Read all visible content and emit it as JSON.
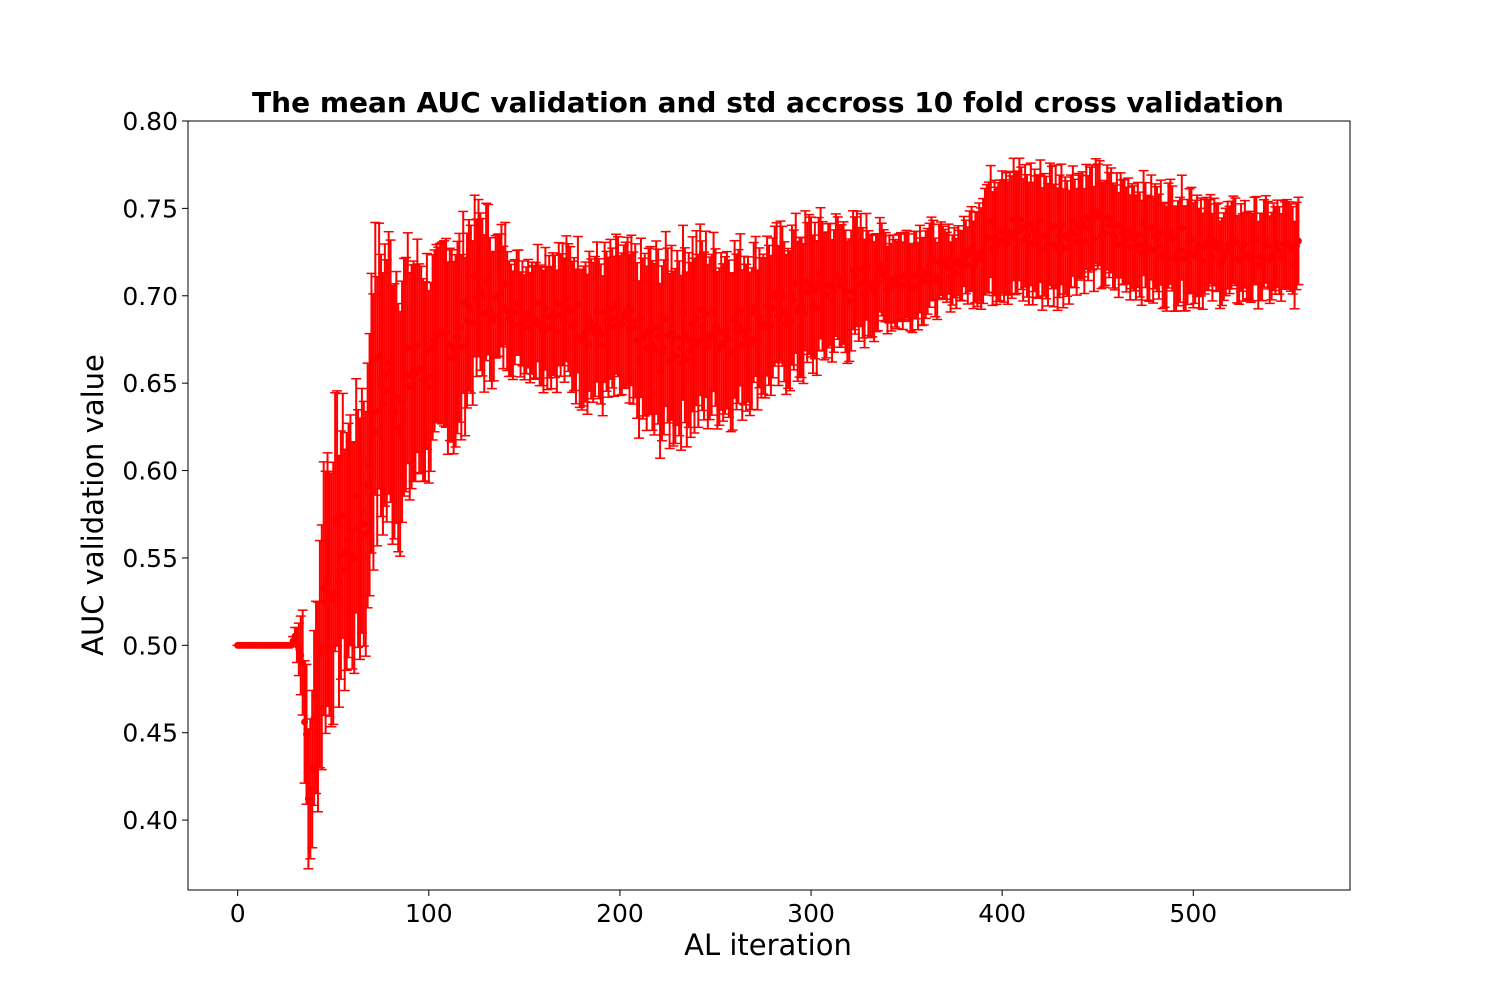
{
  "chart_data": {
    "type": "errorbar",
    "title": "The mean AUC validation and std accross 10 fold cross validation",
    "xlabel": "AL iteration",
    "ylabel": "AUC validation value",
    "xlim": [
      -26,
      582
    ],
    "ylim": [
      0.36,
      0.8
    ],
    "xticks": [
      0,
      100,
      200,
      300,
      400,
      500
    ],
    "yticks": [
      0.4,
      0.45,
      0.5,
      0.55,
      0.6,
      0.65,
      0.7,
      0.75,
      0.8
    ],
    "xtick_labels": [
      "0",
      "100",
      "200",
      "300",
      "400",
      "500"
    ],
    "ytick_labels": [
      "0.40",
      "0.45",
      "0.50",
      "0.55",
      "0.60",
      "0.65",
      "0.70",
      "0.75",
      "0.80"
    ],
    "grid": false,
    "color": "#ff0000",
    "series": [
      {
        "x": [
          0,
          28,
          30,
          32,
          34,
          36,
          37,
          38,
          40,
          42,
          44,
          46,
          48,
          50,
          55,
          60,
          65,
          68,
          70,
          75,
          80,
          85,
          90,
          95,
          100,
          105,
          110,
          115,
          120,
          125,
          130,
          135,
          140,
          145,
          150,
          160,
          170,
          180,
          190,
          200,
          210,
          220,
          230,
          240,
          250,
          260,
          270,
          280,
          290,
          300,
          310,
          320,
          330,
          340,
          350,
          360,
          370,
          380,
          390,
          400,
          410,
          420,
          430,
          440,
          450,
          460,
          470,
          480,
          490,
          500,
          510,
          520,
          530,
          540,
          550,
          555
        ],
        "mean": [
          0.5,
          0.5,
          0.505,
          0.5,
          0.49,
          0.44,
          0.41,
          0.42,
          0.45,
          0.48,
          0.51,
          0.54,
          0.53,
          0.55,
          0.555,
          0.56,
          0.575,
          0.58,
          0.64,
          0.65,
          0.65,
          0.64,
          0.655,
          0.66,
          0.66,
          0.665,
          0.68,
          0.67,
          0.69,
          0.7,
          0.7,
          0.695,
          0.7,
          0.69,
          0.69,
          0.69,
          0.69,
          0.685,
          0.68,
          0.685,
          0.675,
          0.67,
          0.675,
          0.68,
          0.68,
          0.68,
          0.685,
          0.69,
          0.695,
          0.7,
          0.705,
          0.705,
          0.71,
          0.71,
          0.71,
          0.715,
          0.715,
          0.72,
          0.73,
          0.74,
          0.735,
          0.735,
          0.735,
          0.74,
          0.74,
          0.735,
          0.735,
          0.73,
          0.73,
          0.73,
          0.725,
          0.725,
          0.725,
          0.725,
          0.725,
          0.724
        ],
        "std": [
          0.0,
          0.0,
          0.005,
          0.015,
          0.03,
          0.04,
          0.04,
          0.04,
          0.05,
          0.06,
          0.07,
          0.075,
          0.07,
          0.075,
          0.07,
          0.065,
          0.07,
          0.07,
          0.08,
          0.075,
          0.075,
          0.07,
          0.065,
          0.06,
          0.055,
          0.05,
          0.055,
          0.055,
          0.05,
          0.045,
          0.045,
          0.035,
          0.035,
          0.03,
          0.03,
          0.035,
          0.035,
          0.04,
          0.04,
          0.04,
          0.045,
          0.05,
          0.05,
          0.05,
          0.045,
          0.045,
          0.04,
          0.04,
          0.04,
          0.04,
          0.035,
          0.035,
          0.03,
          0.025,
          0.025,
          0.025,
          0.02,
          0.02,
          0.03,
          0.035,
          0.035,
          0.035,
          0.035,
          0.03,
          0.03,
          0.03,
          0.03,
          0.03,
          0.03,
          0.03,
          0.025,
          0.025,
          0.025,
          0.025,
          0.025,
          0.025
        ]
      }
    ]
  }
}
